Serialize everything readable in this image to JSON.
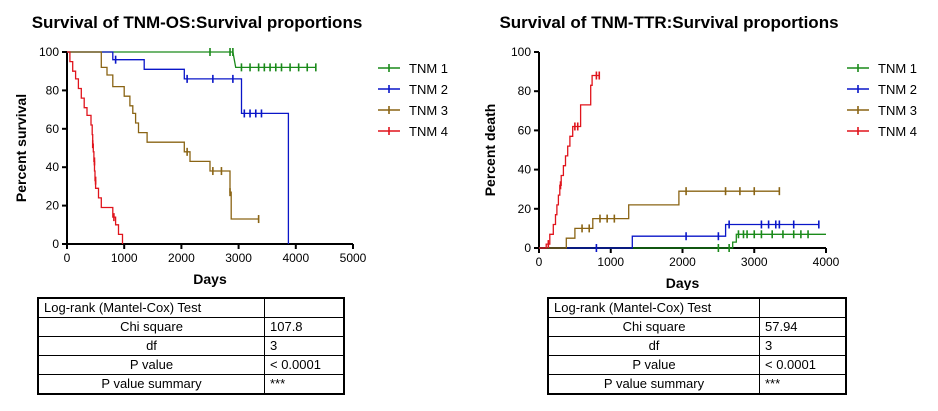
{
  "colors": {
    "TNM 1": "#1a8a1a",
    "TNM 2": "#0a16c8",
    "TNM 3": "#8a6414",
    "TNM 4": "#e0141c"
  },
  "chart_data": [
    {
      "type": "line",
      "title": "Survival of TNM-OS:Survival proportions",
      "xlabel": "Days",
      "ylabel": "Percent survival",
      "xlim": [
        0,
        5000
      ],
      "ylim": [
        0,
        100
      ],
      "xticks": [
        "0",
        "1000",
        "2000",
        "3000",
        "4000",
        "5000"
      ],
      "yticks": [
        "0",
        "20",
        "40",
        "60",
        "80",
        "100"
      ],
      "legend": "right",
      "series": [
        {
          "name": "TNM 1",
          "points": [
            [
              0,
              100
            ],
            [
              2900,
              100
            ],
            [
              2950,
              92
            ],
            [
              4350,
              92
            ]
          ],
          "censored": [
            [
              2500,
              100
            ],
            [
              2850,
              100
            ],
            [
              2900,
              100
            ],
            [
              3050,
              92
            ],
            [
              3200,
              92
            ],
            [
              3350,
              92
            ],
            [
              3450,
              92
            ],
            [
              3550,
              92
            ],
            [
              3650,
              92
            ],
            [
              3750,
              92
            ],
            [
              3900,
              92
            ],
            [
              4050,
              92
            ],
            [
              4200,
              92
            ],
            [
              4350,
              92
            ]
          ]
        },
        {
          "name": "TNM 2",
          "points": [
            [
              0,
              100
            ],
            [
              800,
              100
            ],
            [
              800,
              96
            ],
            [
              1350,
              96
            ],
            [
              1350,
              91
            ],
            [
              2050,
              91
            ],
            [
              2050,
              86
            ],
            [
              3050,
              86
            ],
            [
              3050,
              68
            ],
            [
              3870,
              68
            ],
            [
              3870,
              0
            ]
          ],
          "censored": [
            [
              850,
              96
            ],
            [
              2100,
              86
            ],
            [
              2550,
              86
            ],
            [
              2900,
              86
            ],
            [
              3100,
              68
            ],
            [
              3200,
              68
            ],
            [
              3300,
              68
            ],
            [
              3400,
              68
            ]
          ]
        },
        {
          "name": "TNM 3",
          "points": [
            [
              0,
              100
            ],
            [
              600,
              100
            ],
            [
              600,
              92
            ],
            [
              700,
              92
            ],
            [
              700,
              88
            ],
            [
              800,
              88
            ],
            [
              800,
              82
            ],
            [
              1000,
              82
            ],
            [
              1000,
              77
            ],
            [
              1100,
              77
            ],
            [
              1100,
              72
            ],
            [
              1150,
              72
            ],
            [
              1150,
              68
            ],
            [
              1200,
              68
            ],
            [
              1200,
              63
            ],
            [
              1250,
              63
            ],
            [
              1250,
              58
            ],
            [
              1400,
              58
            ],
            [
              1400,
              53
            ],
            [
              2050,
              53
            ],
            [
              2050,
              48
            ],
            [
              2150,
              48
            ],
            [
              2150,
              43
            ],
            [
              2500,
              43
            ],
            [
              2500,
              38
            ],
            [
              2850,
              38
            ],
            [
              2850,
              27
            ],
            [
              2870,
              27
            ],
            [
              2870,
              13
            ],
            [
              3350,
              13
            ]
          ],
          "censored": [
            [
              2100,
              48
            ],
            [
              2550,
              38
            ],
            [
              2700,
              38
            ],
            [
              2850,
              27
            ],
            [
              3350,
              13
            ]
          ]
        },
        {
          "name": "TNM 4",
          "points": [
            [
              0,
              100
            ],
            [
              50,
              100
            ],
            [
              50,
              95
            ],
            [
              100,
              95
            ],
            [
              100,
              90
            ],
            [
              150,
              90
            ],
            [
              150,
              86
            ],
            [
              200,
              86
            ],
            [
              200,
              81
            ],
            [
              250,
              81
            ],
            [
              250,
              76
            ],
            [
              300,
              76
            ],
            [
              300,
              71
            ],
            [
              350,
              71
            ],
            [
              350,
              67
            ],
            [
              420,
              67
            ],
            [
              420,
              62
            ],
            [
              440,
              62
            ],
            [
              440,
              57
            ],
            [
              450,
              57
            ],
            [
              450,
              52
            ],
            [
              460,
              52
            ],
            [
              460,
              48
            ],
            [
              470,
              48
            ],
            [
              470,
              43
            ],
            [
              480,
              43
            ],
            [
              480,
              38
            ],
            [
              490,
              38
            ],
            [
              490,
              33
            ],
            [
              500,
              33
            ],
            [
              500,
              29
            ],
            [
              550,
              29
            ],
            [
              550,
              24
            ],
            [
              600,
              24
            ],
            [
              600,
              19
            ],
            [
              800,
              19
            ],
            [
              800,
              14
            ],
            [
              850,
              14
            ],
            [
              850,
              10
            ],
            [
              900,
              10
            ],
            [
              900,
              5
            ],
            [
              970,
              5
            ],
            [
              970,
              0
            ]
          ],
          "censored": [
            [
              450,
              52
            ],
            [
              480,
              43
            ],
            [
              500,
              33
            ],
            [
              820,
              14
            ]
          ]
        }
      ]
    },
    {
      "type": "line",
      "title": "Survival of TNM-TTR:Survival proportions",
      "xlabel": "Days",
      "ylabel": "Percent death",
      "xlim": [
        0,
        4000
      ],
      "ylim": [
        0,
        100
      ],
      "xticks": [
        "0",
        "1000",
        "2000",
        "3000",
        "4000"
      ],
      "yticks": [
        "0",
        "20",
        "40",
        "60",
        "80",
        "100"
      ],
      "legend": "right",
      "series": [
        {
          "name": "TNM 1",
          "points": [
            [
              0,
              0
            ],
            [
              2700,
              0
            ],
            [
              2700,
              3
            ],
            [
              2750,
              3
            ],
            [
              2750,
              7
            ],
            [
              4000,
              7
            ]
          ],
          "censored": [
            [
              2500,
              0
            ],
            [
              2650,
              0
            ],
            [
              2780,
              7
            ],
            [
              2850,
              7
            ],
            [
              2900,
              7
            ],
            [
              3000,
              7
            ],
            [
              3100,
              7
            ],
            [
              3250,
              7
            ],
            [
              3400,
              7
            ],
            [
              3550,
              7
            ],
            [
              3650,
              7
            ],
            [
              3750,
              7
            ]
          ]
        },
        {
          "name": "TNM 2",
          "points": [
            [
              0,
              0
            ],
            [
              1300,
              0
            ],
            [
              1300,
              6
            ],
            [
              2600,
              6
            ],
            [
              2600,
              12
            ],
            [
              3900,
              12
            ]
          ],
          "censored": [
            [
              800,
              0
            ],
            [
              2050,
              6
            ],
            [
              2500,
              6
            ],
            [
              2650,
              12
            ],
            [
              3100,
              12
            ],
            [
              3200,
              12
            ],
            [
              3300,
              12
            ],
            [
              3350,
              12
            ],
            [
              3550,
              12
            ],
            [
              3900,
              12
            ]
          ]
        },
        {
          "name": "TNM 3",
          "points": [
            [
              0,
              0
            ],
            [
              380,
              0
            ],
            [
              380,
              5
            ],
            [
              500,
              5
            ],
            [
              500,
              10
            ],
            [
              750,
              10
            ],
            [
              750,
              15
            ],
            [
              1250,
              15
            ],
            [
              1250,
              22
            ],
            [
              1950,
              22
            ],
            [
              1950,
              29
            ],
            [
              3350,
              29
            ]
          ],
          "censored": [
            [
              600,
              10
            ],
            [
              700,
              10
            ],
            [
              850,
              15
            ],
            [
              950,
              15
            ],
            [
              1050,
              15
            ],
            [
              2050,
              29
            ],
            [
              2600,
              29
            ],
            [
              2800,
              29
            ],
            [
              3000,
              29
            ],
            [
              3350,
              29
            ]
          ]
        },
        {
          "name": "TNM 4",
          "points": [
            [
              0,
              0
            ],
            [
              100,
              0
            ],
            [
              100,
              2
            ],
            [
              150,
              2
            ],
            [
              150,
              7
            ],
            [
              200,
              7
            ],
            [
              200,
              12
            ],
            [
              230,
              12
            ],
            [
              230,
              17
            ],
            [
              250,
              17
            ],
            [
              250,
              22
            ],
            [
              270,
              22
            ],
            [
              270,
              27
            ],
            [
              290,
              27
            ],
            [
              290,
              32
            ],
            [
              310,
              32
            ],
            [
              310,
              37
            ],
            [
              340,
              37
            ],
            [
              340,
              42
            ],
            [
              370,
              42
            ],
            [
              370,
              47
            ],
            [
              400,
              47
            ],
            [
              400,
              52
            ],
            [
              430,
              52
            ],
            [
              430,
              57
            ],
            [
              470,
              57
            ],
            [
              470,
              62
            ],
            [
              580,
              62
            ],
            [
              580,
              73
            ],
            [
              720,
              73
            ],
            [
              720,
              83
            ],
            [
              740,
              83
            ],
            [
              740,
              88
            ],
            [
              840,
              88
            ]
          ],
          "censored": [
            [
              130,
              2
            ],
            [
              300,
              32
            ],
            [
              500,
              62
            ],
            [
              540,
              62
            ],
            [
              800,
              88
            ],
            [
              840,
              88
            ]
          ]
        }
      ]
    }
  ],
  "tables": [
    {
      "header": "Log-rank (Mantel-Cox) Test",
      "rows": [
        {
          "label": "Chi square",
          "value": "107.8"
        },
        {
          "label": "df",
          "value": "3"
        },
        {
          "label": "P value",
          "value": "< 0.0001"
        },
        {
          "label": "P value summary",
          "value": "***"
        }
      ]
    },
    {
      "header": "Log-rank (Mantel-Cox) Test",
      "rows": [
        {
          "label": "Chi square",
          "value": "57.94"
        },
        {
          "label": "df",
          "value": "3"
        },
        {
          "label": "P value",
          "value": "< 0.0001"
        },
        {
          "label": "P value summary",
          "value": "***"
        }
      ]
    }
  ]
}
